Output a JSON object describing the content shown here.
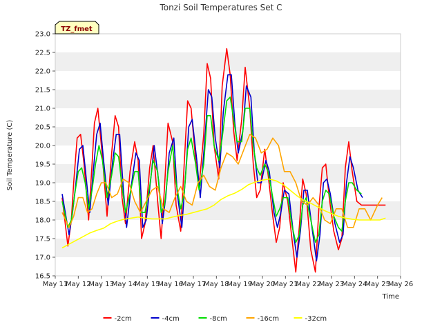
{
  "chart_data": {
    "type": "line",
    "title": "Tonzi Soil Temperatures Set C",
    "xlabel": "Time",
    "ylabel": "Soil Temperature (C)",
    "annotation": "TZ_fmet",
    "xlim": [
      11,
      26
    ],
    "ylim": [
      16.5,
      23.0
    ],
    "x_ticks": [
      11,
      12,
      13,
      14,
      15,
      16,
      17,
      18,
      19,
      20,
      21,
      22,
      23,
      24,
      25,
      26
    ],
    "x_tick_labels": [
      "May 11",
      "May 12",
      "May 13",
      "May 14",
      "May 15",
      "May 16",
      "May 17",
      "May 18",
      "May 19",
      "May 20",
      "May 21",
      "May 22",
      "May 23",
      "May 24",
      "May 25",
      "May 26"
    ],
    "y_ticks": [
      16.5,
      17.0,
      17.5,
      18.0,
      18.5,
      19.0,
      19.5,
      20.0,
      20.5,
      21.0,
      21.5,
      22.0,
      22.5,
      23.0
    ],
    "y_tick_labels": [
      "16.5",
      "17.0",
      "17.5",
      "18.0",
      "18.5",
      "19.0",
      "19.5",
      "20.0",
      "20.5",
      "21.0",
      "21.5",
      "22.0",
      "22.5",
      "23.0"
    ],
    "grid": "horizontal bands",
    "legend_position": "bottom",
    "series": [
      {
        "name": "-2cm",
        "color": "#ff0000",
        "x": [
          11.3,
          11.55,
          11.7,
          11.8,
          11.95,
          12.1,
          12.25,
          12.45,
          12.6,
          12.7,
          12.85,
          13.05,
          13.25,
          13.45,
          13.6,
          13.75,
          13.9,
          14.05,
          14.25,
          14.45,
          14.6,
          14.75,
          14.9,
          15.1,
          15.25,
          15.45,
          15.6,
          15.75,
          15.9,
          16.1,
          16.25,
          16.45,
          16.6,
          16.75,
          16.9,
          17.1,
          17.25,
          17.45,
          17.6,
          17.75,
          17.9,
          18.1,
          18.25,
          18.45,
          18.6,
          18.75,
          18.9,
          19.1,
          19.25,
          19.45,
          19.6,
          19.75,
          19.9,
          20.1,
          20.25,
          20.45,
          20.6,
          20.75,
          20.9,
          21.1,
          21.3,
          21.45,
          21.6,
          21.75,
          21.9,
          22.1,
          22.3,
          22.45,
          22.6,
          22.75,
          22.9,
          23.1,
          23.3,
          23.45,
          23.6,
          23.75,
          23.9,
          24.1,
          24.3,
          24.45,
          24.6,
          24.75,
          24.9,
          25.05,
          25.2,
          25.35
        ],
        "y": [
          18.6,
          17.3,
          18.0,
          19.0,
          20.2,
          20.3,
          19.5,
          18.0,
          19.5,
          20.6,
          21.0,
          19.7,
          18.1,
          19.8,
          20.8,
          20.5,
          18.6,
          17.9,
          19.3,
          20.1,
          19.6,
          17.5,
          17.9,
          19.4,
          20.0,
          18.5,
          17.5,
          18.9,
          20.6,
          20.1,
          18.4,
          17.7,
          19.5,
          21.2,
          21.0,
          19.6,
          18.9,
          20.3,
          22.2,
          21.8,
          20.0,
          19.1,
          21.6,
          22.6,
          21.9,
          20.4,
          19.6,
          20.7,
          22.1,
          21.0,
          19.5,
          18.6,
          18.8,
          19.9,
          19.2,
          18.1,
          17.4,
          17.8,
          19.0,
          18.5,
          17.4,
          16.6,
          17.8,
          19.1,
          18.7,
          17.2,
          16.6,
          18.3,
          19.4,
          19.5,
          18.6,
          17.7,
          17.2,
          17.5,
          19.4,
          20.1,
          19.3,
          18.5,
          18.4,
          18.4,
          18.4,
          18.4,
          18.4,
          18.4,
          18.4,
          18.4
        ]
      },
      {
        "name": "-4cm",
        "color": "#0000cc",
        "x": [
          11.3,
          11.6,
          11.75,
          11.9,
          12.05,
          12.2,
          12.35,
          12.5,
          12.65,
          12.8,
          12.95,
          13.1,
          13.3,
          13.5,
          13.65,
          13.8,
          13.95,
          14.1,
          14.3,
          14.5,
          14.65,
          14.8,
          14.95,
          15.15,
          15.3,
          15.5,
          15.65,
          15.8,
          15.95,
          16.15,
          16.3,
          16.5,
          16.65,
          16.8,
          16.95,
          17.15,
          17.3,
          17.5,
          17.65,
          17.8,
          17.95,
          18.15,
          18.3,
          18.5,
          18.65,
          18.8,
          18.95,
          19.15,
          19.3,
          19.5,
          19.65,
          19.8,
          19.95,
          20.15,
          20.3,
          20.5,
          20.65,
          20.8,
          20.95,
          21.15,
          21.35,
          21.5,
          21.65,
          21.8,
          21.95,
          22.15,
          22.35,
          22.5,
          22.65,
          22.8,
          22.95,
          23.15,
          23.35,
          23.5,
          23.65,
          23.8,
          23.95,
          24.15,
          24.35
        ],
        "y": [
          18.7,
          17.6,
          18.2,
          19.0,
          19.9,
          20.0,
          19.1,
          18.2,
          19.3,
          20.3,
          20.6,
          19.6,
          18.4,
          19.6,
          20.3,
          20.3,
          18.9,
          17.8,
          18.9,
          19.8,
          19.6,
          17.8,
          18.0,
          19.1,
          20.0,
          19.0,
          17.9,
          18.6,
          19.8,
          20.2,
          18.7,
          17.8,
          19.1,
          20.5,
          20.7,
          19.6,
          18.6,
          20.2,
          21.5,
          21.3,
          20.2,
          19.4,
          20.9,
          21.9,
          21.9,
          20.6,
          19.8,
          20.4,
          21.6,
          21.3,
          19.8,
          19.0,
          19.0,
          19.6,
          19.3,
          18.2,
          17.8,
          18.2,
          18.8,
          18.7,
          17.6,
          17.0,
          17.7,
          18.8,
          18.8,
          17.8,
          16.9,
          17.6,
          19.0,
          19.1,
          18.7,
          17.9,
          17.4,
          17.6,
          19.0,
          19.7,
          19.4,
          18.8,
          18.6
        ]
      },
      {
        "name": "-8cm",
        "color": "#00dd00",
        "x": [
          11.3,
          11.55,
          11.7,
          11.85,
          12.0,
          12.15,
          12.3,
          12.45,
          12.6,
          12.75,
          12.9,
          13.05,
          13.25,
          13.45,
          13.6,
          13.75,
          13.9,
          14.05,
          14.25,
          14.45,
          14.6,
          14.75,
          14.9,
          15.1,
          15.25,
          15.45,
          15.6,
          15.75,
          15.9,
          16.1,
          16.25,
          16.45,
          16.6,
          16.75,
          16.9,
          17.1,
          17.25,
          17.45,
          17.6,
          17.75,
          17.9,
          18.1,
          18.25,
          18.45,
          18.6,
          18.75,
          18.9,
          19.1,
          19.25,
          19.45,
          19.6,
          19.75,
          19.9,
          20.1,
          20.25,
          20.45,
          20.6,
          20.75,
          20.9,
          21.1,
          21.3,
          21.45,
          21.6,
          21.75,
          21.9,
          22.1,
          22.3,
          22.45,
          22.6,
          22.75,
          22.9,
          23.1,
          23.3,
          23.45,
          23.6,
          23.75,
          23.9,
          24.1,
          24.3
        ],
        "y": [
          18.5,
          17.8,
          18.0,
          18.7,
          19.3,
          19.4,
          19.0,
          18.3,
          18.8,
          19.5,
          20.0,
          19.6,
          18.6,
          19.2,
          19.8,
          19.7,
          18.9,
          18.2,
          18.7,
          19.3,
          19.3,
          18.2,
          18.2,
          18.9,
          19.6,
          19.3,
          18.2,
          18.4,
          19.3,
          20.0,
          19.0,
          18.3,
          18.7,
          19.9,
          20.2,
          19.5,
          18.8,
          19.5,
          20.8,
          20.8,
          20.0,
          19.6,
          20.2,
          21.2,
          21.3,
          20.7,
          20.1,
          20.1,
          21.0,
          21.0,
          20.0,
          19.4,
          19.2,
          19.5,
          19.3,
          18.6,
          18.1,
          18.3,
          18.6,
          18.6,
          17.8,
          17.4,
          17.6,
          18.4,
          18.6,
          18.0,
          17.4,
          17.6,
          18.5,
          18.8,
          18.7,
          18.1,
          17.8,
          17.7,
          18.5,
          19.0,
          19.0,
          18.8,
          18.7
        ]
      },
      {
        "name": "-16cm",
        "color": "#ffa500",
        "x": [
          11.3,
          11.6,
          11.8,
          12.0,
          12.2,
          12.4,
          12.6,
          12.8,
          13.0,
          13.2,
          13.45,
          13.7,
          13.95,
          14.2,
          14.45,
          14.7,
          14.95,
          15.2,
          15.45,
          15.7,
          15.95,
          16.2,
          16.45,
          16.7,
          16.95,
          17.2,
          17.45,
          17.7,
          17.95,
          18.2,
          18.45,
          18.7,
          18.95,
          19.2,
          19.45,
          19.7,
          19.95,
          20.2,
          20.45,
          20.7,
          20.95,
          21.2,
          21.45,
          21.7,
          21.95,
          22.2,
          22.45,
          22.7,
          22.95,
          23.2,
          23.45,
          23.7,
          23.95,
          24.2,
          24.45,
          24.7,
          25.0,
          25.2
        ],
        "y": [
          18.2,
          17.8,
          18.1,
          18.6,
          18.6,
          18.2,
          18.3,
          18.7,
          19.0,
          19.0,
          18.6,
          18.7,
          19.1,
          19.0,
          18.5,
          18.2,
          18.5,
          18.8,
          18.9,
          18.3,
          18.2,
          18.6,
          18.9,
          18.5,
          18.4,
          19.0,
          19.2,
          18.9,
          18.8,
          19.4,
          19.8,
          19.7,
          19.5,
          19.9,
          20.3,
          20.2,
          19.8,
          19.9,
          20.2,
          20.0,
          19.3,
          19.3,
          19.0,
          18.5,
          18.4,
          18.6,
          18.4,
          18.0,
          17.9,
          18.3,
          18.3,
          17.8,
          17.8,
          18.3,
          18.3,
          18.0,
          18.4,
          18.6
        ]
      },
      {
        "name": "-32cm",
        "color": "#ffff00",
        "x": [
          11.3,
          11.6,
          11.9,
          12.2,
          12.5,
          12.8,
          13.1,
          13.4,
          13.7,
          14.0,
          14.3,
          14.6,
          14.9,
          15.2,
          15.5,
          15.8,
          16.1,
          16.4,
          16.7,
          17.0,
          17.3,
          17.6,
          17.9,
          18.2,
          18.5,
          18.8,
          19.1,
          19.4,
          19.7,
          20.0,
          20.3,
          20.6,
          20.9,
          21.2,
          21.5,
          21.8,
          22.1,
          22.4,
          22.7,
          23.0,
          23.3,
          23.6,
          23.9,
          24.2,
          24.5,
          24.8,
          25.1,
          25.35
        ],
        "y": [
          17.25,
          17.35,
          17.45,
          17.55,
          17.65,
          17.72,
          17.78,
          17.9,
          17.97,
          18.02,
          18.05,
          18.08,
          18.05,
          18.03,
          18.03,
          18.03,
          18.08,
          18.12,
          18.15,
          18.2,
          18.25,
          18.3,
          18.4,
          18.55,
          18.65,
          18.72,
          18.82,
          18.95,
          19.02,
          19.07,
          19.1,
          19.05,
          18.95,
          18.8,
          18.65,
          18.52,
          18.45,
          18.35,
          18.25,
          18.17,
          18.1,
          18.05,
          18.02,
          18.0,
          18.0,
          18.0,
          18.0,
          18.05
        ]
      }
    ]
  }
}
